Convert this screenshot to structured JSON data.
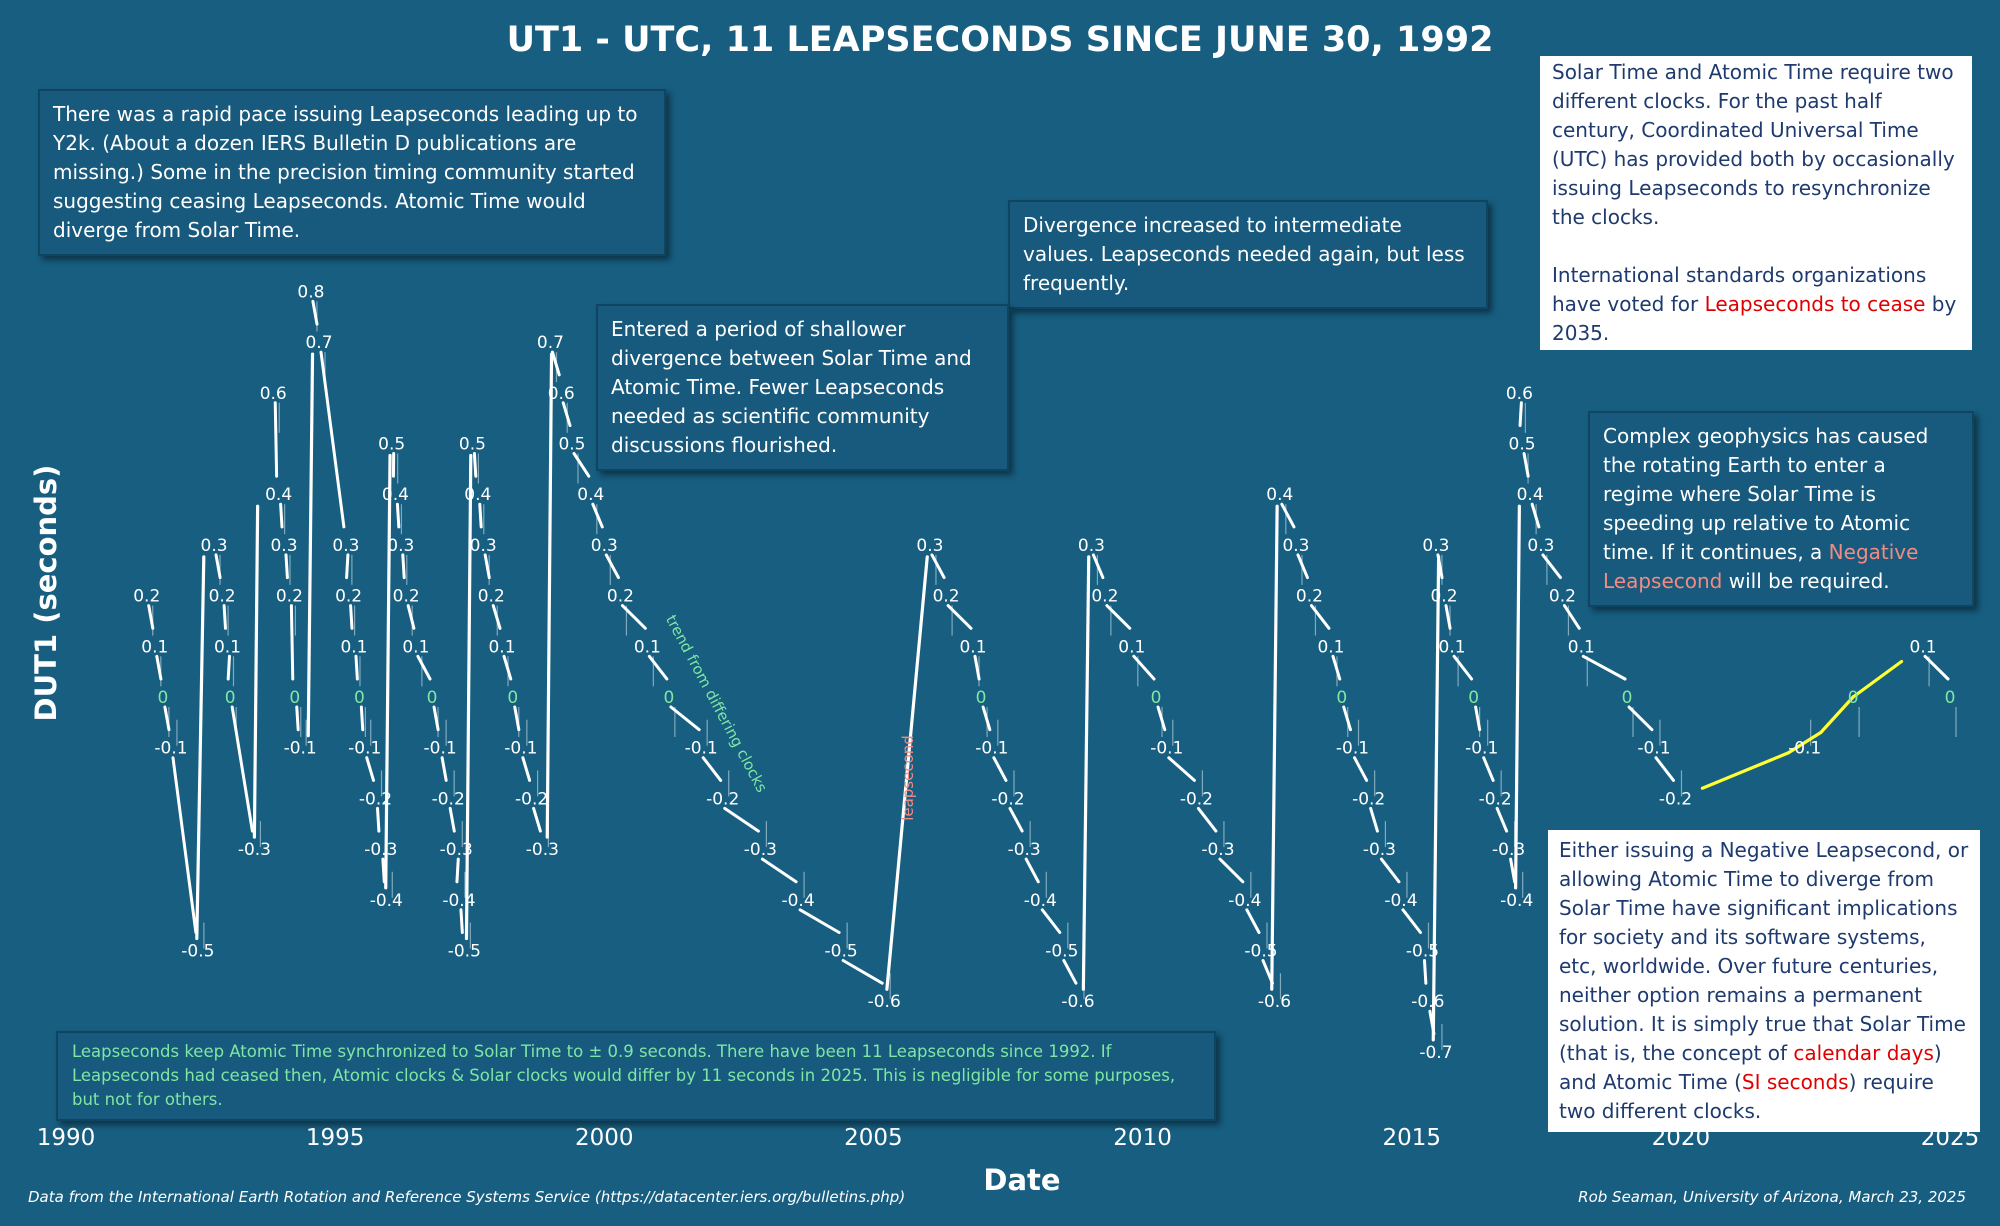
{
  "chart_data": {
    "type": "line",
    "title": "UT1 - UTC, 11 LEAPSECONDS SINCE JUNE 30, 1992",
    "xlabel": "Date",
    "ylabel": "DUT1 (seconds)",
    "xlim": [
      1990,
      2025
    ],
    "ylim": [
      -0.7,
      0.8
    ],
    "x_ticks": [
      "1990",
      "1995",
      "2000",
      "2005",
      "2010",
      "2015",
      "2020",
      "2025"
    ],
    "leapsecond_segments": [
      {
        "x0": 1992.43,
        "y0": -0.5,
        "x1": 1992.56,
        "y1": 0.3
      },
      {
        "x0": 1993.5,
        "y0": -0.3,
        "x1": 1993.56,
        "y1": 0.4
      },
      {
        "x0": 1994.5,
        "y0": -0.1,
        "x1": 1994.58,
        "y1": 0.7
      },
      {
        "x0": 1995.94,
        "y0": -0.4,
        "x1": 1996.02,
        "y1": 0.5
      },
      {
        "x0": 1997.44,
        "y0": -0.5,
        "x1": 1997.52,
        "y1": 0.5
      },
      {
        "x0": 1998.94,
        "y0": -0.3,
        "x1": 1999.02,
        "y1": 0.7
      },
      {
        "x0": 2005.25,
        "y0": -0.6,
        "x1": 2006.0,
        "y1": 0.3
      },
      {
        "x0": 2008.9,
        "y0": -0.6,
        "x1": 2009.0,
        "y1": 0.3
      },
      {
        "x0": 2012.4,
        "y0": -0.6,
        "x1": 2012.5,
        "y1": 0.4
      },
      {
        "x0": 2015.4,
        "y0": -0.7,
        "x1": 2015.5,
        "y1": 0.3
      },
      {
        "x0": 2016.93,
        "y0": -0.4,
        "x1": 2017.0,
        "y1": 0.4
      }
    ],
    "dut1_labels": [
      {
        "x": 1991.5,
        "y": 0.2,
        "text": "0.2"
      },
      {
        "x": 1991.65,
        "y": 0.1,
        "text": "0.1"
      },
      {
        "x": 1991.8,
        "y": 0.0,
        "text": "0"
      },
      {
        "x": 1991.95,
        "y": -0.1,
        "text": "-0.1"
      },
      {
        "x": 1992.45,
        "y": -0.5,
        "text": "-0.5"
      },
      {
        "x": 1992.75,
        "y": 0.3,
        "text": "0.3"
      },
      {
        "x": 1992.9,
        "y": 0.2,
        "text": "0.2"
      },
      {
        "x": 1993.0,
        "y": 0.1,
        "text": "0.1"
      },
      {
        "x": 1993.05,
        "y": 0.0,
        "text": "0"
      },
      {
        "x": 1993.5,
        "y": -0.3,
        "text": "-0.3"
      },
      {
        "x": 1993.85,
        "y": 0.6,
        "text": "0.6"
      },
      {
        "x": 1993.95,
        "y": 0.4,
        "text": "0.4"
      },
      {
        "x": 1994.05,
        "y": 0.3,
        "text": "0.3"
      },
      {
        "x": 1994.15,
        "y": 0.2,
        "text": "0.2"
      },
      {
        "x": 1994.25,
        "y": 0.0,
        "text": "0"
      },
      {
        "x": 1994.35,
        "y": -0.1,
        "text": "-0.1"
      },
      {
        "x": 1994.55,
        "y": 0.8,
        "text": "0.8"
      },
      {
        "x": 1994.7,
        "y": 0.7,
        "text": "0.7"
      },
      {
        "x": 1995.2,
        "y": 0.3,
        "text": "0.3"
      },
      {
        "x": 1995.25,
        "y": 0.2,
        "text": "0.2"
      },
      {
        "x": 1995.35,
        "y": 0.1,
        "text": "0.1"
      },
      {
        "x": 1995.45,
        "y": 0.0,
        "text": "0"
      },
      {
        "x": 1995.55,
        "y": -0.1,
        "text": "-0.1"
      },
      {
        "x": 1995.75,
        "y": -0.2,
        "text": "-0.2"
      },
      {
        "x": 1995.85,
        "y": -0.3,
        "text": "-0.3"
      },
      {
        "x": 1995.95,
        "y": -0.4,
        "text": "-0.4"
      },
      {
        "x": 1996.05,
        "y": 0.5,
        "text": "0.5"
      },
      {
        "x": 1996.12,
        "y": 0.4,
        "text": "0.4"
      },
      {
        "x": 1996.22,
        "y": 0.3,
        "text": "0.3"
      },
      {
        "x": 1996.32,
        "y": 0.2,
        "text": "0.2"
      },
      {
        "x": 1996.5,
        "y": 0.1,
        "text": "0.1"
      },
      {
        "x": 1996.8,
        "y": 0.0,
        "text": "0"
      },
      {
        "x": 1996.95,
        "y": -0.1,
        "text": "-0.1"
      },
      {
        "x": 1997.1,
        "y": -0.2,
        "text": "-0.2"
      },
      {
        "x": 1997.25,
        "y": -0.3,
        "text": "-0.3"
      },
      {
        "x": 1997.3,
        "y": -0.4,
        "text": "-0.4"
      },
      {
        "x": 1997.4,
        "y": -0.5,
        "text": "-0.5"
      },
      {
        "x": 1997.55,
        "y": 0.5,
        "text": "0.5"
      },
      {
        "x": 1997.65,
        "y": 0.4,
        "text": "0.4"
      },
      {
        "x": 1997.75,
        "y": 0.3,
        "text": "0.3"
      },
      {
        "x": 1997.9,
        "y": 0.2,
        "text": "0.2"
      },
      {
        "x": 1998.1,
        "y": 0.1,
        "text": "0.1"
      },
      {
        "x": 1998.3,
        "y": 0.0,
        "text": "0"
      },
      {
        "x": 1998.45,
        "y": -0.1,
        "text": "-0.1"
      },
      {
        "x": 1998.65,
        "y": -0.2,
        "text": "-0.2"
      },
      {
        "x": 1998.85,
        "y": -0.3,
        "text": "-0.3"
      },
      {
        "x": 1999.0,
        "y": 0.7,
        "text": "0.7"
      },
      {
        "x": 1999.2,
        "y": 0.6,
        "text": "0.6"
      },
      {
        "x": 1999.4,
        "y": 0.5,
        "text": "0.5"
      },
      {
        "x": 1999.75,
        "y": 0.4,
        "text": "0.4"
      },
      {
        "x": 2000.0,
        "y": 0.3,
        "text": "0.3"
      },
      {
        "x": 2000.3,
        "y": 0.2,
        "text": "0.2"
      },
      {
        "x": 2000.8,
        "y": 0.1,
        "text": "0.1"
      },
      {
        "x": 2001.2,
        "y": 0.0,
        "text": "0"
      },
      {
        "x": 2001.8,
        "y": -0.1,
        "text": "-0.1"
      },
      {
        "x": 2002.2,
        "y": -0.2,
        "text": "-0.2"
      },
      {
        "x": 2002.9,
        "y": -0.3,
        "text": "-0.3"
      },
      {
        "x": 2003.6,
        "y": -0.4,
        "text": "-0.4"
      },
      {
        "x": 2004.4,
        "y": -0.5,
        "text": "-0.5"
      },
      {
        "x": 2005.2,
        "y": -0.6,
        "text": "-0.6"
      },
      {
        "x": 2006.05,
        "y": 0.3,
        "text": "0.3"
      },
      {
        "x": 2006.35,
        "y": 0.2,
        "text": "0.2"
      },
      {
        "x": 2006.85,
        "y": 0.1,
        "text": "0.1"
      },
      {
        "x": 2007.0,
        "y": 0.0,
        "text": "0"
      },
      {
        "x": 2007.2,
        "y": -0.1,
        "text": "-0.1"
      },
      {
        "x": 2007.5,
        "y": -0.2,
        "text": "-0.2"
      },
      {
        "x": 2007.8,
        "y": -0.3,
        "text": "-0.3"
      },
      {
        "x": 2008.1,
        "y": -0.4,
        "text": "-0.4"
      },
      {
        "x": 2008.5,
        "y": -0.5,
        "text": "-0.5"
      },
      {
        "x": 2008.8,
        "y": -0.6,
        "text": "-0.6"
      },
      {
        "x": 2009.05,
        "y": 0.3,
        "text": "0.3"
      },
      {
        "x": 2009.3,
        "y": 0.2,
        "text": "0.2"
      },
      {
        "x": 2009.8,
        "y": 0.1,
        "text": "0.1"
      },
      {
        "x": 2010.25,
        "y": 0.0,
        "text": "0"
      },
      {
        "x": 2010.45,
        "y": -0.1,
        "text": "-0.1"
      },
      {
        "x": 2011.0,
        "y": -0.2,
        "text": "-0.2"
      },
      {
        "x": 2011.4,
        "y": -0.3,
        "text": "-0.3"
      },
      {
        "x": 2011.9,
        "y": -0.4,
        "text": "-0.4"
      },
      {
        "x": 2012.2,
        "y": -0.5,
        "text": "-0.5"
      },
      {
        "x": 2012.45,
        "y": -0.6,
        "text": "-0.6"
      },
      {
        "x": 2012.55,
        "y": 0.4,
        "text": "0.4"
      },
      {
        "x": 2012.85,
        "y": 0.3,
        "text": "0.3"
      },
      {
        "x": 2013.1,
        "y": 0.2,
        "text": "0.2"
      },
      {
        "x": 2013.5,
        "y": 0.1,
        "text": "0.1"
      },
      {
        "x": 2013.7,
        "y": 0.0,
        "text": "0"
      },
      {
        "x": 2013.9,
        "y": -0.1,
        "text": "-0.1"
      },
      {
        "x": 2014.2,
        "y": -0.2,
        "text": "-0.2"
      },
      {
        "x": 2014.4,
        "y": -0.3,
        "text": "-0.3"
      },
      {
        "x": 2014.8,
        "y": -0.4,
        "text": "-0.4"
      },
      {
        "x": 2015.2,
        "y": -0.5,
        "text": "-0.5"
      },
      {
        "x": 2015.3,
        "y": -0.6,
        "text": "-0.6"
      },
      {
        "x": 2015.45,
        "y": -0.7,
        "text": "-0.7"
      },
      {
        "x": 2015.45,
        "y": 0.3,
        "text": "0.3"
      },
      {
        "x": 2015.6,
        "y": 0.2,
        "text": "0.2"
      },
      {
        "x": 2015.75,
        "y": 0.1,
        "text": "0.1"
      },
      {
        "x": 2016.15,
        "y": 0.0,
        "text": "0"
      },
      {
        "x": 2016.3,
        "y": -0.1,
        "text": "-0.1"
      },
      {
        "x": 2016.55,
        "y": -0.2,
        "text": "-0.2"
      },
      {
        "x": 2016.8,
        "y": -0.3,
        "text": "-0.3"
      },
      {
        "x": 2016.95,
        "y": -0.4,
        "text": "-0.4"
      },
      {
        "x": 2017.0,
        "y": 0.6,
        "text": "0.6"
      },
      {
        "x": 2017.05,
        "y": 0.5,
        "text": "0.5"
      },
      {
        "x": 2017.2,
        "y": 0.4,
        "text": "0.4"
      },
      {
        "x": 2017.4,
        "y": 0.3,
        "text": "0.3"
      },
      {
        "x": 2017.8,
        "y": 0.2,
        "text": "0.2"
      },
      {
        "x": 2018.15,
        "y": 0.1,
        "text": "0.1"
      },
      {
        "x": 2019.0,
        "y": 0.0,
        "text": "0"
      },
      {
        "x": 2019.5,
        "y": -0.1,
        "text": "-0.1"
      },
      {
        "x": 2019.9,
        "y": -0.2,
        "text": "-0.2"
      },
      {
        "x": 2022.3,
        "y": -0.1,
        "text": "-0.1"
      },
      {
        "x": 2023.2,
        "y": 0.0,
        "text": "0"
      },
      {
        "x": 2024.5,
        "y": 0.1,
        "text": "0.1"
      },
      {
        "x": 2025.0,
        "y": 0.0,
        "text": "0"
      }
    ],
    "recent_trend": [
      {
        "x": 2020.4,
        "y": -0.18
      },
      {
        "x": 2022.0,
        "y": -0.11
      },
      {
        "x": 2022.6,
        "y": -0.07
      },
      {
        "x": 2023.2,
        "y": 0.0
      },
      {
        "x": 2024.1,
        "y": 0.07
      }
    ],
    "recent_trend_color": "#ffff33",
    "annotations": [
      {
        "text": "trend from differing clocks",
        "x": 2002.1,
        "y": 0.0
      },
      {
        "text": "leapsecond",
        "x": 2005.7,
        "y": -0.15
      }
    ]
  },
  "notes": {
    "rapid_pace": "There was a rapid pace issuing Leapseconds leading up to Y2k. (About a dozen IERS Bulletin D publications are missing.) Some in the precision timing community started suggesting ceasing Leapseconds. Atomic Time would diverge from Solar Time.",
    "divergence": "Divergence increased to intermediate values. Leapseconds needed again, but less frequently.",
    "shallower": "Entered a period of shallower divergence between Solar Time and Atomic Time. Fewer Leapseconds needed as scientific community discussions flourished.",
    "two_clocks_p1": "Solar Time and Atomic Time require two different clocks. For the past half century, Coordinated Universal Time (UTC) has provided both by occasionally issuing Leapseconds to resynchronize the clocks.",
    "two_clocks_p2_a": "International standards organizations have voted for ",
    "two_clocks_p2_red": "Leapseconds to cease",
    "two_clocks_p2_b": " by 2035.",
    "geophysics_a": "Complex geophysics has caused the rotating Earth to enter a regime where Solar Time is speeding up relative to Atomic time. If it continues, a ",
    "geophysics_pink": "Negative Leapsecond",
    "geophysics_b": " will be required.",
    "either_a": "Either issuing a Negative Leapsecond, or allowing Atomic Time to diverge from Solar Time have significant implications for society and its software systems, etc, worldwide. Over future centuries, neither option remains a permanent solution. It is simply true that Solar Time (that is, the concept of ",
    "either_red1": "calendar days",
    "either_b": ") and Atomic Time (",
    "either_red2": "SI seconds",
    "either_c": ") require two different clocks.",
    "sync": "Leapseconds keep Atomic Time synchronized to Solar Time to ± 0.9 seconds. There have been 11 Leapseconds since 1992. If Leapseconds had ceased then, Atomic clocks & Solar clocks would differ by 11 seconds in 2025. This is negligible for some purposes, but not for others."
  },
  "footer": {
    "source": "Data from the International Earth Rotation and Reference Systems Service (https://datacenter.iers.org/bulletins.php)",
    "credit": "Rob Seaman, University of Arizona, March 23, 2025"
  }
}
